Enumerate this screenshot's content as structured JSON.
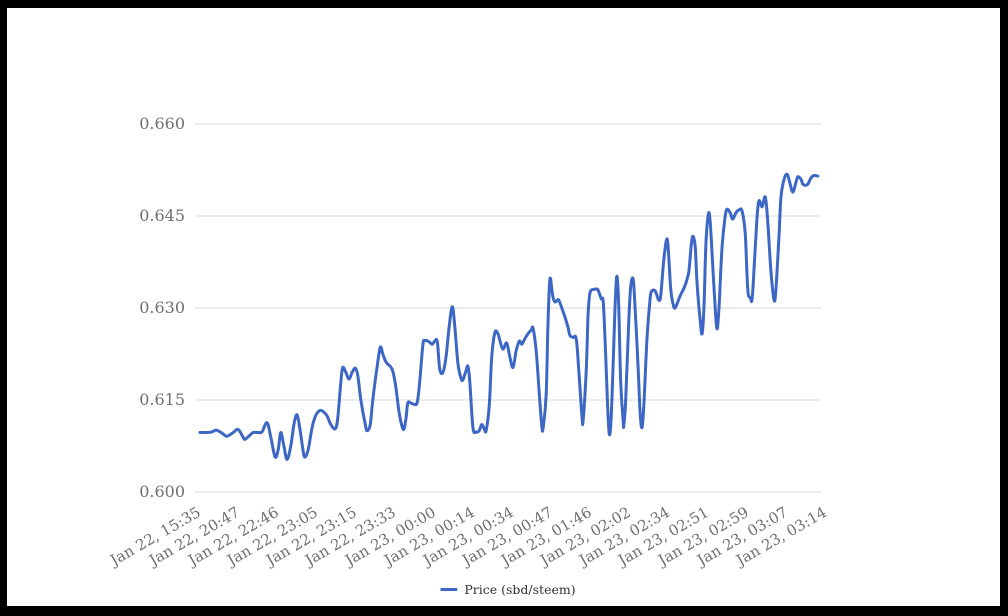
{
  "colors": {
    "line": "#3c67c5",
    "grid": "#d9d9d9",
    "axis_text": "#6f6f6f",
    "legend_text": "#333333",
    "frame": "#000000",
    "background": "#ffffff"
  },
  "chart_data": {
    "type": "line",
    "title": "",
    "xlabel": "",
    "ylabel": "",
    "grid": "horizontal",
    "legend_position": "bottom",
    "ylim": [
      0.6,
      0.66
    ],
    "y_tick_labels": [
      "0.660",
      "0.645",
      "0.630",
      "0.615",
      "0.600"
    ],
    "x_tick_labels": [
      "Jan 22, 15:35",
      "Jan 22, 20:47",
      "Jan 22, 22:46",
      "Jan 22, 23:05",
      "Jan 22, 23:15",
      "Jan 22, 23:33",
      "Jan 23, 00:00",
      "Jan 23, 00:14",
      "Jan 23, 00:34",
      "Jan 23, 00:47",
      "Jan 23, 01:46",
      "Jan 23, 02:02",
      "Jan 23, 02:34",
      "Jan 23, 02:51",
      "Jan 23, 02:59",
      "Jan 23, 03:07",
      "Jan 23, 03:14"
    ],
    "series": [
      {
        "name": "Price (sbd/steem)",
        "points": [
          [
            0.008,
            0.6097
          ],
          [
            0.018,
            0.6097
          ],
          [
            0.027,
            0.6098
          ],
          [
            0.034,
            0.6101
          ],
          [
            0.043,
            0.6096
          ],
          [
            0.051,
            0.6091
          ],
          [
            0.061,
            0.6097
          ],
          [
            0.069,
            0.6102
          ],
          [
            0.077,
            0.6089
          ],
          [
            0.08,
            0.6086
          ],
          [
            0.088,
            0.6093
          ],
          [
            0.093,
            0.6097
          ],
          [
            0.101,
            0.6097
          ],
          [
            0.107,
            0.6098
          ],
          [
            0.115,
            0.6113
          ],
          [
            0.121,
            0.609
          ],
          [
            0.128,
            0.6057
          ],
          [
            0.133,
            0.607
          ],
          [
            0.137,
            0.6097
          ],
          [
            0.142,
            0.6075
          ],
          [
            0.147,
            0.6053
          ],
          [
            0.153,
            0.6075
          ],
          [
            0.158,
            0.611
          ],
          [
            0.163,
            0.6126
          ],
          [
            0.168,
            0.61
          ],
          [
            0.173,
            0.6065
          ],
          [
            0.176,
            0.6057
          ],
          [
            0.181,
            0.607
          ],
          [
            0.187,
            0.6105
          ],
          [
            0.193,
            0.6125
          ],
          [
            0.2,
            0.6133
          ],
          [
            0.206,
            0.613
          ],
          [
            0.211,
            0.6124
          ],
          [
            0.217,
            0.611
          ],
          [
            0.224,
            0.6103
          ],
          [
            0.228,
            0.612
          ],
          [
            0.233,
            0.618
          ],
          [
            0.236,
            0.6203
          ],
          [
            0.241,
            0.6195
          ],
          [
            0.246,
            0.6184
          ],
          [
            0.251,
            0.6195
          ],
          [
            0.256,
            0.6202
          ],
          [
            0.26,
            0.619
          ],
          [
            0.265,
            0.615
          ],
          [
            0.272,
            0.611
          ],
          [
            0.275,
            0.61
          ],
          [
            0.28,
            0.611
          ],
          [
            0.284,
            0.615
          ],
          [
            0.291,
            0.6205
          ],
          [
            0.296,
            0.6236
          ],
          [
            0.3,
            0.6225
          ],
          [
            0.304,
            0.6214
          ],
          [
            0.308,
            0.6208
          ],
          [
            0.311,
            0.6206
          ],
          [
            0.316,
            0.6197
          ],
          [
            0.321,
            0.617
          ],
          [
            0.326,
            0.613
          ],
          [
            0.331,
            0.6106
          ],
          [
            0.334,
            0.6103
          ],
          [
            0.337,
            0.612
          ],
          [
            0.34,
            0.6145
          ],
          [
            0.345,
            0.6145
          ],
          [
            0.35,
            0.6143
          ],
          [
            0.355,
            0.6146
          ],
          [
            0.359,
            0.618
          ],
          [
            0.364,
            0.624
          ],
          [
            0.367,
            0.6247
          ],
          [
            0.372,
            0.6246
          ],
          [
            0.375,
            0.6244
          ],
          [
            0.379,
            0.6241
          ],
          [
            0.383,
            0.6246
          ],
          [
            0.387,
            0.6245
          ],
          [
            0.391,
            0.62
          ],
          [
            0.396,
            0.6195
          ],
          [
            0.401,
            0.622
          ],
          [
            0.406,
            0.627
          ],
          [
            0.411,
            0.6302
          ],
          [
            0.415,
            0.627
          ],
          [
            0.42,
            0.621
          ],
          [
            0.425,
            0.6185
          ],
          [
            0.428,
            0.6183
          ],
          [
            0.433,
            0.6198
          ],
          [
            0.436,
            0.6205
          ],
          [
            0.439,
            0.618
          ],
          [
            0.444,
            0.6105
          ],
          [
            0.449,
            0.6098
          ],
          [
            0.454,
            0.61
          ],
          [
            0.458,
            0.611
          ],
          [
            0.462,
            0.6103
          ],
          [
            0.465,
            0.61
          ],
          [
            0.47,
            0.614
          ],
          [
            0.474,
            0.622
          ],
          [
            0.479,
            0.626
          ],
          [
            0.484,
            0.6258
          ],
          [
            0.487,
            0.6247
          ],
          [
            0.492,
            0.6233
          ],
          [
            0.498,
            0.6243
          ],
          [
            0.503,
            0.622
          ],
          [
            0.508,
            0.6203
          ],
          [
            0.513,
            0.623
          ],
          [
            0.518,
            0.6246
          ],
          [
            0.522,
            0.6241
          ],
          [
            0.527,
            0.625
          ],
          [
            0.532,
            0.6258
          ],
          [
            0.537,
            0.6264
          ],
          [
            0.54,
            0.6267
          ],
          [
            0.545,
            0.623
          ],
          [
            0.55,
            0.616
          ],
          [
            0.554,
            0.6108
          ],
          [
            0.556,
            0.6104
          ],
          [
            0.561,
            0.616
          ],
          [
            0.564,
            0.628
          ],
          [
            0.567,
            0.6347
          ],
          [
            0.57,
            0.633
          ],
          [
            0.572,
            0.6317
          ],
          [
            0.575,
            0.631
          ],
          [
            0.578,
            0.6312
          ],
          [
            0.581,
            0.6313
          ],
          [
            0.586,
            0.63
          ],
          [
            0.591,
            0.6285
          ],
          [
            0.596,
            0.6268
          ],
          [
            0.599,
            0.6255
          ],
          [
            0.604,
            0.6252
          ],
          [
            0.609,
            0.625
          ],
          [
            0.613,
            0.62
          ],
          [
            0.618,
            0.6125
          ],
          [
            0.62,
            0.6116
          ],
          [
            0.625,
            0.62
          ],
          [
            0.628,
            0.629
          ],
          [
            0.631,
            0.6325
          ],
          [
            0.636,
            0.633
          ],
          [
            0.641,
            0.6331
          ],
          [
            0.644,
            0.6329
          ],
          [
            0.649,
            0.6315
          ],
          [
            0.652,
            0.6311
          ],
          [
            0.655,
            0.625
          ],
          [
            0.66,
            0.612
          ],
          [
            0.663,
            0.6095
          ],
          [
            0.666,
            0.615
          ],
          [
            0.671,
            0.63
          ],
          [
            0.674,
            0.6352
          ],
          [
            0.677,
            0.63
          ],
          [
            0.68,
            0.618
          ],
          [
            0.684,
            0.6115
          ],
          [
            0.685,
            0.6109
          ],
          [
            0.688,
            0.615
          ],
          [
            0.693,
            0.628
          ],
          [
            0.696,
            0.6335
          ],
          [
            0.7,
            0.6347
          ],
          [
            0.703,
            0.63
          ],
          [
            0.708,
            0.62
          ],
          [
            0.711,
            0.613
          ],
          [
            0.714,
            0.6105
          ],
          [
            0.717,
            0.614
          ],
          [
            0.722,
            0.625
          ],
          [
            0.727,
            0.6315
          ],
          [
            0.73,
            0.6328
          ],
          [
            0.735,
            0.6328
          ],
          [
            0.738,
            0.632
          ],
          [
            0.741,
            0.6313
          ],
          [
            0.744,
            0.632
          ],
          [
            0.749,
            0.638
          ],
          [
            0.754,
            0.6413
          ],
          [
            0.757,
            0.638
          ],
          [
            0.76,
            0.633
          ],
          [
            0.764,
            0.6305
          ],
          [
            0.767,
            0.63
          ],
          [
            0.772,
            0.6312
          ],
          [
            0.775,
            0.632
          ],
          [
            0.78,
            0.633
          ],
          [
            0.784,
            0.634
          ],
          [
            0.789,
            0.636
          ],
          [
            0.792,
            0.6395
          ],
          [
            0.795,
            0.6417
          ],
          [
            0.799,
            0.64
          ],
          [
            0.802,
            0.634
          ],
          [
            0.807,
            0.628
          ],
          [
            0.81,
            0.6258
          ],
          [
            0.813,
            0.63
          ],
          [
            0.816,
            0.64
          ],
          [
            0.82,
            0.6453
          ],
          [
            0.823,
            0.644
          ],
          [
            0.827,
            0.637
          ],
          [
            0.831,
            0.63
          ],
          [
            0.834,
            0.6266
          ],
          [
            0.837,
            0.63
          ],
          [
            0.842,
            0.64
          ],
          [
            0.847,
            0.645
          ],
          [
            0.85,
            0.6461
          ],
          [
            0.855,
            0.6455
          ],
          [
            0.859,
            0.6445
          ],
          [
            0.864,
            0.6455
          ],
          [
            0.869,
            0.646
          ],
          [
            0.874,
            0.6458
          ],
          [
            0.879,
            0.642
          ],
          [
            0.883,
            0.633
          ],
          [
            0.887,
            0.6317
          ],
          [
            0.89,
            0.6315
          ],
          [
            0.894,
            0.638
          ],
          [
            0.898,
            0.645
          ],
          [
            0.901,
            0.6475
          ],
          [
            0.906,
            0.6465
          ],
          [
            0.911,
            0.6481
          ],
          [
            0.915,
            0.644
          ],
          [
            0.92,
            0.636
          ],
          [
            0.925,
            0.6313
          ],
          [
            0.928,
            0.633
          ],
          [
            0.933,
            0.642
          ],
          [
            0.936,
            0.648
          ],
          [
            0.941,
            0.651
          ],
          [
            0.946,
            0.6518
          ],
          [
            0.95,
            0.6505
          ],
          [
            0.955,
            0.6489
          ],
          [
            0.96,
            0.6505
          ],
          [
            0.963,
            0.6514
          ],
          [
            0.968,
            0.651
          ],
          [
            0.971,
            0.6502
          ],
          [
            0.975,
            0.65
          ],
          [
            0.979,
            0.6502
          ],
          [
            0.984,
            0.6512
          ],
          [
            0.989,
            0.6516
          ],
          [
            0.995,
            0.6515
          ]
        ]
      }
    ]
  }
}
